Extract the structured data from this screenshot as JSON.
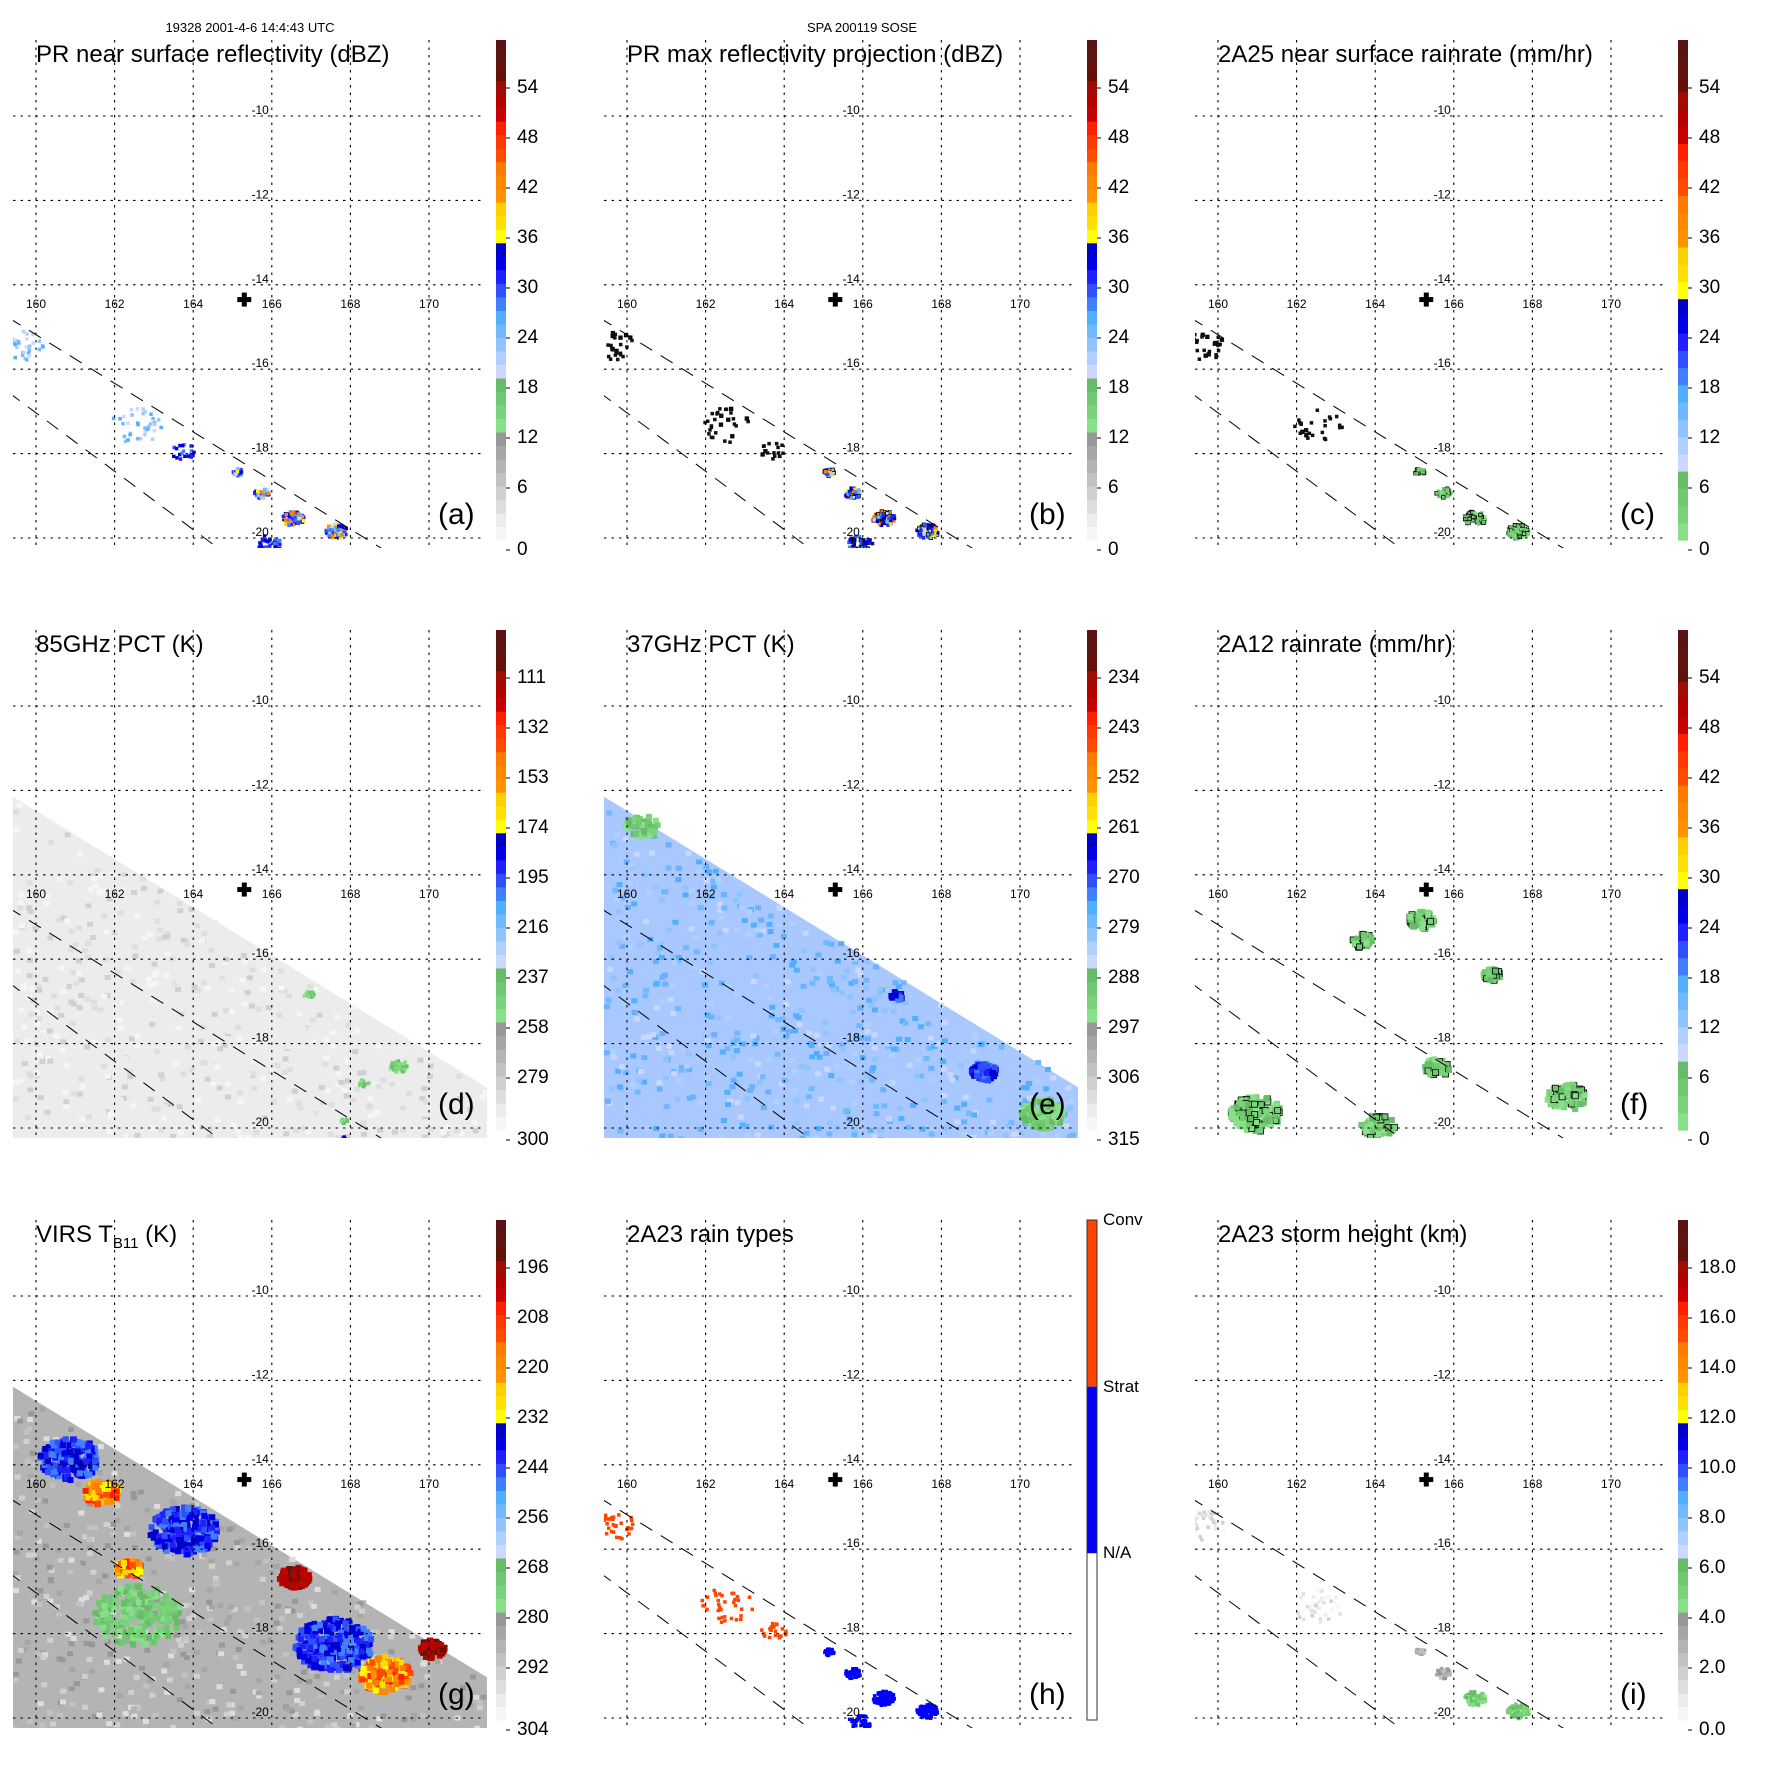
{
  "header": {
    "left_subtitle": "19328 2001-4-6 14:4:43 UTC",
    "center_subtitle": "SPA 200119 SOSE"
  },
  "axes": {
    "lon_ticks": [
      160,
      162,
      164,
      166,
      168,
      170
    ],
    "lat_ticks": [
      -10,
      -12,
      -14,
      -16,
      -18,
      -20
    ],
    "lon_range": [
      159.4,
      171.5
    ],
    "lat_range": [
      -8.6,
      -20.25
    ],
    "marker": {
      "symbol": "plus",
      "lon": 165.3,
      "lat": -14.35
    },
    "grid": "dotted"
  },
  "palette": {
    "dark_red": [
      "#5a1414",
      "#5e1610",
      "#641209"
    ],
    "red": [
      "#a00c00",
      "#b40000",
      "#c80000"
    ],
    "red_orange": [
      "#ff2000",
      "#ff3a00",
      "#ff4a00"
    ],
    "orange": [
      "#ff7a00",
      "#ff8800",
      "#ff9400"
    ],
    "yellow": [
      "#ffd000",
      "#ffe000",
      "#ffff00"
    ],
    "blue": [
      "#0000c8",
      "#0000e6",
      "#2020ff",
      "#3050ff",
      "#4080ff"
    ],
    "light_blue": [
      "#50b0ff",
      "#70b8ff",
      "#90c4ff",
      "#b0d0ff",
      "#ccd8ff"
    ],
    "green": [
      "#68bc68",
      "#70c870",
      "#7ad27a",
      "#88e088"
    ],
    "gray": [
      "#989898",
      "#a6a6a6",
      "#b4b4b4",
      "#c2c2c2",
      "#d0d0d0",
      "#dedede",
      "#ececec",
      "#f6f6f6"
    ],
    "conv": "#ff4500",
    "strat": "#0000ff",
    "na": "#ffffff"
  },
  "chart_data": [
    {
      "id": "a",
      "type": "heatmap",
      "title": "PR near surface reflectivity (dBZ)",
      "label": "(a)",
      "colorbar": {
        "ticks": [
          "54",
          "48",
          "42",
          "36",
          "30",
          "24",
          "18",
          "12",
          "6",
          "0"
        ],
        "range": [
          0,
          60
        ],
        "order": "ascending-up",
        "bands": [
          "gray",
          "green",
          "light_blue",
          "blue",
          "yellow",
          "orange",
          "red_orange",
          "red",
          "dark_red"
        ]
      },
      "field": "pr_sparse",
      "features": [
        {
          "lon": 159.6,
          "lat": -15.4,
          "spread": 0.5,
          "n": 40,
          "value_class": "light_blue"
        },
        {
          "lon": 162.5,
          "lat": -17.3,
          "spread": 0.6,
          "n": 35,
          "value_class": "light_blue"
        },
        {
          "lon": 163.7,
          "lat": -17.9,
          "spread": 0.3,
          "n": 20,
          "value_class": "blue"
        },
        {
          "lon": 165.1,
          "lat": -18.4,
          "spread": 0.12,
          "n": 25,
          "value_class": "core"
        },
        {
          "lon": 165.7,
          "lat": -18.9,
          "spread": 0.18,
          "n": 45,
          "value_class": "core"
        },
        {
          "lon": 166.5,
          "lat": -19.5,
          "spread": 0.25,
          "n": 70,
          "value_class": "core"
        },
        {
          "lon": 167.6,
          "lat": -19.8,
          "spread": 0.25,
          "n": 90,
          "value_class": "core"
        },
        {
          "lon": 165.9,
          "lat": -20.1,
          "spread": 0.3,
          "n": 40,
          "value_class": "blue"
        }
      ]
    },
    {
      "id": "b",
      "type": "heatmap",
      "title": "PR max reflectivity projection (dBZ)",
      "label": "(b)",
      "colorbar": {
        "ticks": [
          "54",
          "48",
          "42",
          "36",
          "30",
          "24",
          "18",
          "12",
          "6",
          "0"
        ],
        "range": [
          0,
          60
        ],
        "order": "ascending-up",
        "bands": [
          "gray",
          "green",
          "light_blue",
          "blue",
          "yellow",
          "orange",
          "red_orange",
          "red",
          "dark_red"
        ]
      },
      "field": "pr_contoured",
      "features": [
        {
          "lon": 159.6,
          "lat": -15.4,
          "spread": 0.5,
          "n": 30,
          "value_class": "black_dot"
        },
        {
          "lon": 162.5,
          "lat": -17.3,
          "spread": 0.6,
          "n": 30,
          "value_class": "black_dot"
        },
        {
          "lon": 163.7,
          "lat": -17.9,
          "spread": 0.3,
          "n": 16,
          "value_class": "black_dot"
        },
        {
          "lon": 165.1,
          "lat": -18.4,
          "spread": 0.12,
          "n": 25,
          "value_class": "core"
        },
        {
          "lon": 165.7,
          "lat": -18.9,
          "spread": 0.18,
          "n": 45,
          "value_class": "core"
        },
        {
          "lon": 166.5,
          "lat": -19.5,
          "spread": 0.25,
          "n": 70,
          "value_class": "core"
        },
        {
          "lon": 167.6,
          "lat": -19.8,
          "spread": 0.25,
          "n": 90,
          "value_class": "core"
        },
        {
          "lon": 165.9,
          "lat": -20.1,
          "spread": 0.3,
          "n": 40,
          "value_class": "blue"
        }
      ]
    },
    {
      "id": "c",
      "type": "heatmap",
      "title": "2A25 near surface rainrate (mm/hr)",
      "label": "(c)",
      "colorbar": {
        "ticks": [
          "54",
          "48",
          "42",
          "36",
          "30",
          "24",
          "18",
          "12",
          "6",
          "0"
        ],
        "range": [
          0,
          60
        ],
        "order": "ascending-up",
        "bands": [
          "green",
          "light_blue",
          "blue",
          "yellow",
          "orange",
          "red_orange",
          "red",
          "dark_red"
        ]
      },
      "field": "rainrate_sparse",
      "features": [
        {
          "lon": 159.6,
          "lat": -15.4,
          "spread": 0.5,
          "n": 30,
          "value_class": "black_dot"
        },
        {
          "lon": 162.5,
          "lat": -17.3,
          "spread": 0.6,
          "n": 25,
          "value_class": "black_dot"
        },
        {
          "lon": 165.1,
          "lat": -18.4,
          "spread": 0.12,
          "n": 25,
          "value_class": "green"
        },
        {
          "lon": 165.7,
          "lat": -18.9,
          "spread": 0.18,
          "n": 45,
          "value_class": "green"
        },
        {
          "lon": 166.5,
          "lat": -19.5,
          "spread": 0.25,
          "n": 70,
          "value_class": "green"
        },
        {
          "lon": 167.6,
          "lat": -19.8,
          "spread": 0.25,
          "n": 90,
          "value_class": "green"
        }
      ]
    },
    {
      "id": "d",
      "type": "heatmap",
      "title": "85GHz PCT (K)",
      "label": "(d)",
      "colorbar": {
        "ticks": [
          "111",
          "132",
          "153",
          "174",
          "195",
          "216",
          "237",
          "258",
          "279",
          "300"
        ],
        "range": [
          300,
          90
        ],
        "order": "descending-up",
        "bands": [
          "gray",
          "green",
          "light_blue",
          "blue",
          "yellow",
          "orange",
          "red_orange",
          "red",
          "dark_red"
        ]
      },
      "field": "swath_gray",
      "background": "#ececec",
      "features": [
        {
          "lon": 166.9,
          "lat": -16.8,
          "spread": 0.12,
          "n": 25,
          "value_class": "green"
        },
        {
          "lon": 169.2,
          "lat": -18.5,
          "spread": 0.2,
          "n": 60,
          "value_class": "green"
        },
        {
          "lon": 168.3,
          "lat": -18.9,
          "spread": 0.12,
          "n": 15,
          "value_class": "green"
        },
        {
          "lon": 167.8,
          "lat": -19.8,
          "spread": 0.08,
          "n": 8,
          "value_class": "green"
        },
        {
          "lon": 167.8,
          "lat": -20.2,
          "spread": 0.05,
          "n": 5,
          "value_class": "blue"
        }
      ]
    },
    {
      "id": "e",
      "type": "heatmap",
      "title": "37GHz PCT (K)",
      "label": "(e)",
      "colorbar": {
        "ticks": [
          "234",
          "243",
          "252",
          "261",
          "270",
          "279",
          "288",
          "297",
          "306",
          "315"
        ],
        "range": [
          315,
          225
        ],
        "order": "descending-up",
        "bands": [
          "gray",
          "green",
          "light_blue",
          "blue",
          "yellow",
          "orange",
          "red_orange",
          "red",
          "dark_red"
        ]
      },
      "field": "swath_lightblue",
      "background": "#a8c8ff",
      "features": [
        {
          "lon": 166.8,
          "lat": -16.8,
          "spread": 0.15,
          "n": 20,
          "value_class": "blue"
        },
        {
          "lon": 169.0,
          "lat": -18.6,
          "spread": 0.3,
          "n": 70,
          "value_class": "blue"
        },
        {
          "lon": 170.5,
          "lat": -19.6,
          "spread": 0.5,
          "n": 120,
          "value_class": "green"
        },
        {
          "lon": 160.3,
          "lat": -12.8,
          "spread": 0.4,
          "n": 40,
          "value_class": "green"
        }
      ]
    },
    {
      "id": "f",
      "type": "heatmap",
      "title": "2A12 rainrate (mm/hr)",
      "label": "(f)",
      "colorbar": {
        "ticks": [
          "54",
          "48",
          "42",
          "36",
          "30",
          "24",
          "18",
          "12",
          "6",
          "0"
        ],
        "range": [
          0,
          60
        ],
        "order": "ascending-up",
        "bands": [
          "green",
          "light_blue",
          "blue",
          "yellow",
          "orange",
          "red_orange",
          "red",
          "dark_red"
        ]
      },
      "field": "rain_patches",
      "features": [
        {
          "lon": 160.9,
          "lat": -19.6,
          "spread": 0.6,
          "n": 160,
          "value_class": "green"
        },
        {
          "lon": 165.1,
          "lat": -15.0,
          "spread": 0.3,
          "n": 60,
          "value_class": "green"
        },
        {
          "lon": 166.9,
          "lat": -16.3,
          "spread": 0.2,
          "n": 40,
          "value_class": "green"
        },
        {
          "lon": 165.5,
          "lat": -18.5,
          "spread": 0.3,
          "n": 50,
          "value_class": "green"
        },
        {
          "lon": 168.8,
          "lat": -19.2,
          "spread": 0.45,
          "n": 100,
          "value_class": "green"
        },
        {
          "lon": 164.0,
          "lat": -19.9,
          "spread": 0.4,
          "n": 60,
          "value_class": "green"
        },
        {
          "lon": 163.6,
          "lat": -15.5,
          "spread": 0.25,
          "n": 40,
          "value_class": "green"
        }
      ]
    },
    {
      "id": "g",
      "type": "heatmap",
      "title": "VIRS T",
      "title_sub": "B11",
      "title_suffix": " (K)",
      "label": "(g)",
      "colorbar": {
        "ticks": [
          "196",
          "208",
          "220",
          "232",
          "244",
          "256",
          "268",
          "280",
          "292",
          "304"
        ],
        "range": [
          304,
          184
        ],
        "order": "descending-up",
        "bands": [
          "gray",
          "green",
          "light_blue",
          "blue",
          "yellow",
          "orange",
          "red_orange",
          "red",
          "dark_red"
        ]
      },
      "field": "swath_ir",
      "background": "#b4b4b4",
      "features": [
        {
          "lon": 166.5,
          "lat": -16.6,
          "spread": 0.35,
          "n": 120,
          "value_class": "red"
        },
        {
          "lon": 170.0,
          "lat": -18.3,
          "spread": 0.3,
          "n": 90,
          "value_class": "red"
        },
        {
          "lon": 168.8,
          "lat": -18.9,
          "spread": 0.6,
          "n": 160,
          "value_class": "orange"
        },
        {
          "lon": 161.6,
          "lat": -14.6,
          "spread": 0.4,
          "n": 90,
          "value_class": "orange"
        },
        {
          "lon": 162.3,
          "lat": -16.4,
          "spread": 0.3,
          "n": 60,
          "value_class": "orange"
        },
        {
          "lon": 163.7,
          "lat": -15.5,
          "spread": 0.8,
          "n": 260,
          "value_class": "blue"
        },
        {
          "lon": 167.5,
          "lat": -18.2,
          "spread": 0.9,
          "n": 300,
          "value_class": "blue"
        },
        {
          "lon": 160.8,
          "lat": -13.8,
          "spread": 0.7,
          "n": 200,
          "value_class": "blue"
        },
        {
          "lon": 162.5,
          "lat": -17.5,
          "spread": 1.0,
          "n": 200,
          "value_class": "green"
        }
      ]
    },
    {
      "id": "h",
      "type": "heatmap",
      "title": "2A23 rain types",
      "label": "(h)",
      "colorbar": {
        "categories": [
          "Conv",
          "Strat",
          "N/A"
        ],
        "colors": [
          "#ff4500",
          "#0000ff",
          "#ffffff"
        ]
      },
      "field": "rain_types",
      "features": [
        {
          "lon": 159.6,
          "lat": -15.4,
          "spread": 0.5,
          "n": 40,
          "value_class": "conv"
        },
        {
          "lon": 162.5,
          "lat": -17.3,
          "spread": 0.6,
          "n": 35,
          "value_class": "conv"
        },
        {
          "lon": 163.7,
          "lat": -17.9,
          "spread": 0.3,
          "n": 20,
          "value_class": "conv"
        },
        {
          "lon": 165.1,
          "lat": -18.4,
          "spread": 0.12,
          "n": 25,
          "value_class": "strat"
        },
        {
          "lon": 165.7,
          "lat": -18.9,
          "spread": 0.18,
          "n": 45,
          "value_class": "strat"
        },
        {
          "lon": 166.5,
          "lat": -19.5,
          "spread": 0.25,
          "n": 70,
          "value_class": "strat"
        },
        {
          "lon": 167.6,
          "lat": -19.8,
          "spread": 0.25,
          "n": 90,
          "value_class": "strat"
        },
        {
          "lon": 165.9,
          "lat": -20.1,
          "spread": 0.3,
          "n": 40,
          "value_class": "strat"
        }
      ]
    },
    {
      "id": "i",
      "type": "heatmap",
      "title": "2A23 storm height (km)",
      "label": "(i)",
      "colorbar": {
        "ticks": [
          "18.0",
          "16.0",
          "14.0",
          "12.0",
          "10.0",
          "8.0",
          "6.0",
          "4.0",
          "2.0",
          "0.0"
        ],
        "range": [
          0,
          20
        ],
        "order": "ascending-up",
        "bands": [
          "gray",
          "green",
          "light_blue",
          "blue",
          "yellow",
          "orange",
          "red_orange",
          "red",
          "dark_red"
        ]
      },
      "field": "storm_height",
      "features": [
        {
          "lon": 159.6,
          "lat": -15.4,
          "spread": 0.5,
          "n": 40,
          "value_class": "lightgray"
        },
        {
          "lon": 162.5,
          "lat": -17.3,
          "spread": 0.6,
          "n": 35,
          "value_class": "lightgray"
        },
        {
          "lon": 165.1,
          "lat": -18.4,
          "spread": 0.12,
          "n": 25,
          "value_class": "gray"
        },
        {
          "lon": 165.7,
          "lat": -18.9,
          "spread": 0.18,
          "n": 45,
          "value_class": "gray"
        },
        {
          "lon": 166.5,
          "lat": -19.5,
          "spread": 0.25,
          "n": 70,
          "value_class": "green"
        },
        {
          "lon": 167.6,
          "lat": -19.8,
          "spread": 0.25,
          "n": 90,
          "value_class": "green"
        }
      ]
    }
  ]
}
